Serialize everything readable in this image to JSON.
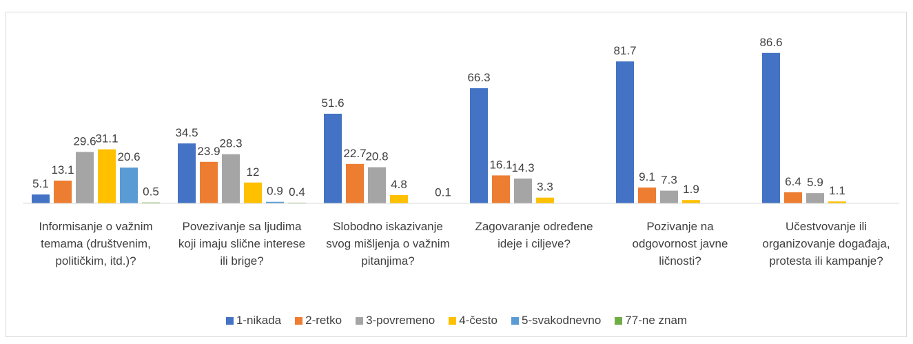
{
  "chart_data": {
    "type": "bar",
    "categories": [
      "Informisanje o važnim temama (društvenim, političkim, itd.)?",
      "Povezivanje sa ljudima koji imaju slične interese ili brige?",
      "Slobodno iskazivanje svog mišljenja o važnim pitanjima?",
      "Zagovaranje određene ideje i ciljeve?",
      "Pozivanje na odgovornost javne ličnosti?",
      "Učestvovanje ili organizovanje događaja, protesta ili kampanje?"
    ],
    "series": [
      {
        "name": "1-nikada",
        "color": "#4472c4",
        "values": [
          5.1,
          34.5,
          51.6,
          66.3,
          81.7,
          86.6
        ]
      },
      {
        "name": "2-retko",
        "color": "#ed7d31",
        "values": [
          13.1,
          23.9,
          22.7,
          16.1,
          9.1,
          6.4
        ]
      },
      {
        "name": "3-povremeno",
        "color": "#a5a5a5",
        "values": [
          29.6,
          28.3,
          20.8,
          14.3,
          7.3,
          5.9
        ]
      },
      {
        "name": "4-često",
        "color": "#ffc000",
        "values": [
          31.1,
          12,
          4.8,
          3.3,
          1.9,
          1.1
        ]
      },
      {
        "name": "5-svakodnevno",
        "color": "#5b9bd5",
        "values": [
          20.6,
          0.9,
          null,
          null,
          null,
          null
        ]
      },
      {
        "name": "77-ne znam",
        "color": "#70ad47",
        "values": [
          0.5,
          0.4,
          0.1,
          null,
          null,
          null
        ]
      }
    ],
    "ylim": [
      0,
      100
    ],
    "legend": "bottom"
  }
}
